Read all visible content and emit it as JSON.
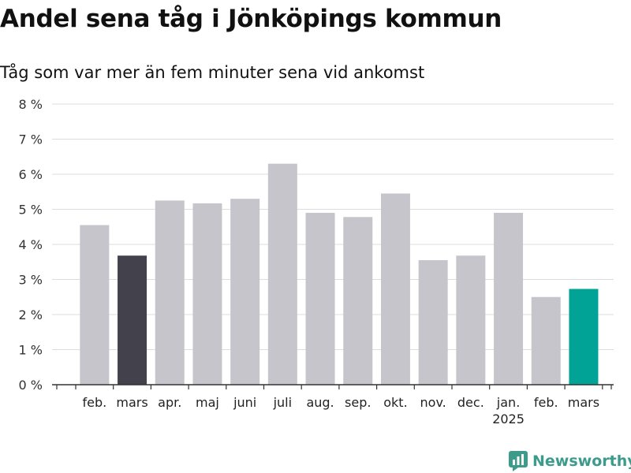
{
  "title": "Andel sena tåg i Jönköpings kommun",
  "subtitle": "Tåg som var mer än fem minuter sena vid ankomst",
  "brand": "Newsworthy",
  "colors": {
    "default_bar": "#c6c5cc",
    "previous_year_bar": "#43414c",
    "latest_bar": "#00a396",
    "grid": "#dddddd",
    "axis": "#333333"
  },
  "chart_data": {
    "type": "bar",
    "categories": [
      "feb.",
      "mars",
      "apr.",
      "maj",
      "juni",
      "juli",
      "aug.",
      "sep.",
      "okt.",
      "nov.",
      "dec.",
      "jan.",
      "feb.",
      "mars"
    ],
    "year_labels": [
      "",
      "",
      "",
      "",
      "",
      "",
      "",
      "",
      "",
      "",
      "",
      "2025",
      "",
      ""
    ],
    "values": [
      4.55,
      3.68,
      5.25,
      5.17,
      5.3,
      6.3,
      4.9,
      4.78,
      5.45,
      3.55,
      3.68,
      4.9,
      2.5,
      2.73
    ],
    "highlight": [
      "",
      "previous_year",
      "",
      "",
      "",
      "",
      "",
      "",
      "",
      "",
      "",
      "",
      "",
      "latest"
    ],
    "unit": "%",
    "ylim": [
      0,
      8
    ],
    "yticks": [
      0,
      1,
      2,
      3,
      4,
      5,
      6,
      7,
      8
    ],
    "ytick_labels": [
      "0 %",
      "1 %",
      "2 %",
      "3 %",
      "4 %",
      "5 %",
      "6 %",
      "7 %",
      "8 %"
    ],
    "grid": true,
    "xlabel": "",
    "ylabel": ""
  }
}
